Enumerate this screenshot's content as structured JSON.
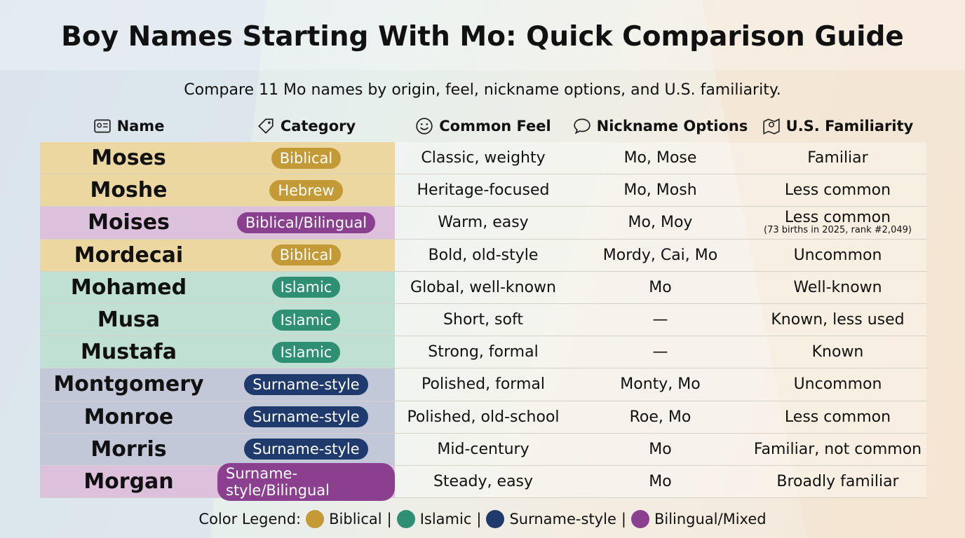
{
  "header": {
    "title": "Boy Names Starting With Mo: Quick Comparison Guide",
    "subtitle": "Compare 11 Mo names by origin, feel, nickname options, and U.S. familiarity."
  },
  "table": {
    "columns": [
      "Name",
      "Category",
      "Common Feel",
      "Nickname Options",
      "U.S. Familiarity"
    ],
    "rows": [
      {
        "name": "Moses",
        "category": "Biblical",
        "feel": "Classic, weighty",
        "nickname": "Mo, Mose",
        "familiarity": "Familiar",
        "pill_color": "#c39a35",
        "row_color": "#ecd7a0"
      },
      {
        "name": "Moshe",
        "category": "Hebrew",
        "feel": "Heritage-focused",
        "nickname": "Mo, Mosh",
        "familiarity": "Less common",
        "pill_color": "#c39a35",
        "row_color": "#ecd7a0"
      },
      {
        "name": "Moises",
        "category": "Biblical/Bilingual",
        "feel": "Warm, easy",
        "nickname": "Mo, Moy",
        "familiarity": "Less common",
        "note": "(73 births in 2025, rank #2,049)",
        "pill_color": "#8b3f8f",
        "row_color": "#dcc0dc"
      },
      {
        "name": "Mordecai",
        "category": "Biblical",
        "feel": "Bold, old-style",
        "nickname": "Mordy, Cai, Mo",
        "familiarity": "Uncommon",
        "pill_color": "#c39a35",
        "row_color": "#ecd7a0"
      },
      {
        "name": "Mohamed",
        "category": "Islamic",
        "feel": "Global, well-known",
        "nickname": "Mo",
        "familiarity": "Well-known",
        "pill_color": "#2e8f72",
        "row_color": "#bfe0d3"
      },
      {
        "name": "Musa",
        "category": "Islamic",
        "feel": "Short, soft",
        "nickname": "—",
        "familiarity": "Known, less used",
        "pill_color": "#2e8f72",
        "row_color": "#bfe0d3"
      },
      {
        "name": "Mustafa",
        "category": "Islamic",
        "feel": "Strong, formal",
        "nickname": "—",
        "familiarity": "Known",
        "pill_color": "#2e8f72",
        "row_color": "#bfe0d3"
      },
      {
        "name": "Montgomery",
        "category": "Surname-style",
        "feel": "Polished, formal",
        "nickname": "Monty, Mo",
        "familiarity": "Uncommon",
        "pill_color": "#1f3a6c",
        "row_color": "#c2c8d8"
      },
      {
        "name": "Monroe",
        "category": "Surname-style",
        "feel": "Polished, old-school",
        "nickname": "Roe, Mo",
        "familiarity": "Less common",
        "pill_color": "#1f3a6c",
        "row_color": "#c2c8d8"
      },
      {
        "name": "Morris",
        "category": "Surname-style",
        "feel": "Mid-century",
        "nickname": "Mo",
        "familiarity": "Familiar, not common",
        "pill_color": "#1f3a6c",
        "row_color": "#c2c8d8"
      },
      {
        "name": "Morgan",
        "category": "Surname-style/Bilingual",
        "feel": "Steady, easy",
        "nickname": "Mo",
        "familiarity": "Broadly familiar",
        "pill_color": "#8b3f8f",
        "row_color": "#dcc0dc"
      }
    ]
  },
  "legend": {
    "title": "Color Legend:",
    "separator": "|",
    "items": [
      {
        "label": "Biblical",
        "color": "#c39a35"
      },
      {
        "label": "Islamic",
        "color": "#2e8f72"
      },
      {
        "label": "Surname-style",
        "color": "#1f3a6c"
      },
      {
        "label": "Bilingual/Mixed",
        "color": "#8b3f8f"
      }
    ]
  }
}
